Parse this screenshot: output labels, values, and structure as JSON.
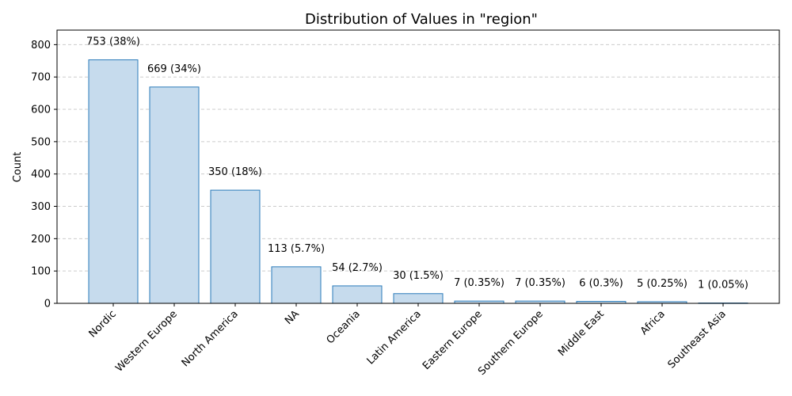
{
  "chart_data": {
    "type": "bar",
    "title": "Distribution of Values in \"region\"",
    "xlabel": "",
    "ylabel": "Count",
    "ylim": [
      0,
      845
    ],
    "yticks": [
      0,
      100,
      200,
      300,
      400,
      500,
      600,
      700,
      800
    ],
    "grid": "y",
    "categories": [
      "Nordic",
      "Western Europe",
      "North America",
      "NA",
      "Oceania",
      "Latin America",
      "Eastern Europe",
      "Southern Europe",
      "Middle East",
      "Africa",
      "Southeast Asia"
    ],
    "values": [
      753,
      669,
      350,
      113,
      54,
      30,
      7,
      7,
      6,
      5,
      1
    ],
    "data_labels": [
      "753 (38%)",
      "669 (34%)",
      "350 (18%)",
      "113 (5.7%)",
      "54 (2.7%)",
      "30 (1.5%)",
      "7 (0.35%)",
      "7 (0.35%)",
      "6 (0.3%)",
      "5 (0.25%)",
      "1 (0.05%)"
    ],
    "colors": {
      "bar_fill": "#c6dbed",
      "bar_stroke": "#2b7bba"
    }
  }
}
